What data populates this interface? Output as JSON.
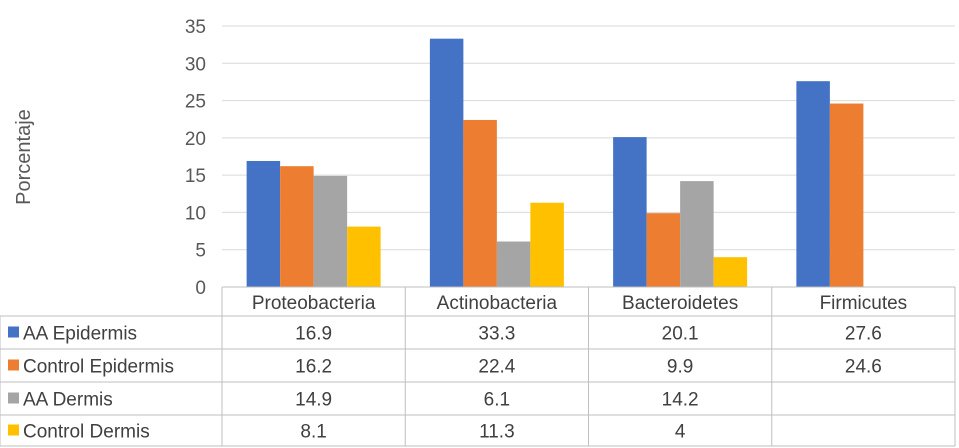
{
  "chart_data": {
    "type": "bar",
    "ylabel": "Porcentaje",
    "ylim": [
      0,
      35
    ],
    "yticks": [
      0,
      5,
      10,
      15,
      20,
      25,
      30,
      35
    ],
    "grid": true,
    "legend_placement": "data-table-left",
    "categories": [
      "Proteobacteria",
      "Actinobacteria",
      "Bacteroidetes",
      "Firmicutes"
    ],
    "series": [
      {
        "name": "AA Epidermis",
        "color": "#4472C4",
        "values": [
          16.9,
          33.3,
          20.1,
          27.6
        ]
      },
      {
        "name": "Control Epidermis",
        "color": "#ED7D31",
        "values": [
          16.2,
          22.4,
          9.9,
          24.6
        ]
      },
      {
        "name": "AA Dermis",
        "color": "#A5A5A5",
        "values": [
          14.9,
          6.1,
          14.2,
          null
        ]
      },
      {
        "name": "Control Dermis",
        "color": "#FFC000",
        "values": [
          8.1,
          11.3,
          4,
          null
        ]
      }
    ],
    "table_values": [
      [
        "16.9",
        "33.3",
        "20.1",
        "27.6"
      ],
      [
        "16.2",
        "22.4",
        "9.9",
        "24.6"
      ],
      [
        "14.9",
        "6.1",
        "14.2",
        ""
      ],
      [
        "8.1",
        "11.3",
        "4",
        ""
      ]
    ]
  }
}
